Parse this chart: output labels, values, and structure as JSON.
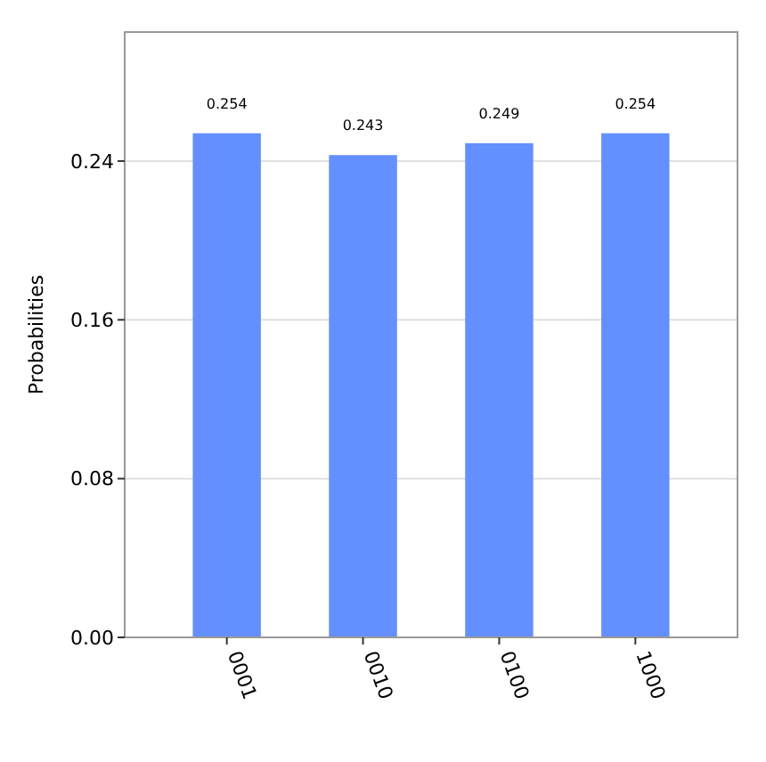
{
  "chart_data": {
    "type": "bar",
    "ylabel": "Probabilities",
    "categories": [
      "0001",
      "0010",
      "0100",
      "1000"
    ],
    "values": [
      0.254,
      0.243,
      0.249,
      0.254
    ],
    "color": "#648fff",
    "ylim": [
      0,
      0.305
    ],
    "yticks": [
      {
        "value": 0,
        "label": "0.00"
      },
      0.08,
      0.16,
      0.24
    ],
    "grid": "y",
    "data_labels": true
  }
}
